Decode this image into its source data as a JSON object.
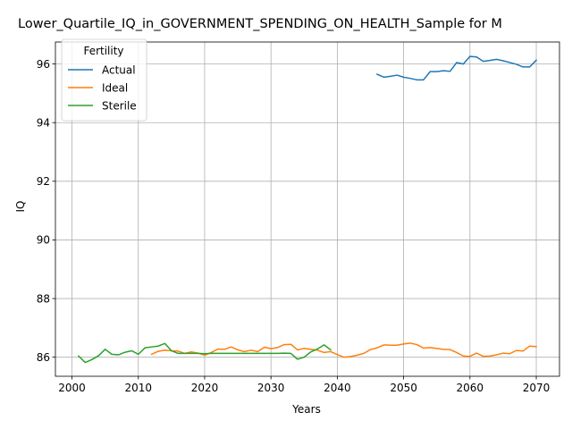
{
  "chart_data": {
    "type": "line",
    "title": "Lower_Quartile_IQ_in_GOVERNMENT_SPENDING_ON_HEALTH_Sample for M",
    "xlabel": "Years",
    "ylabel": "IQ",
    "xlim": [
      1997.5,
      2073.5
    ],
    "ylim": [
      85.35,
      96.75
    ],
    "xticks": [
      2000,
      2010,
      2020,
      2030,
      2040,
      2050,
      2060,
      2070
    ],
    "yticks": [
      86,
      88,
      90,
      92,
      94,
      96
    ],
    "grid": true,
    "legend": {
      "title": "Fertility",
      "position": "top-left"
    },
    "series": [
      {
        "name": "Actual",
        "color": "#1f77b4",
        "x": [
          2046,
          2047,
          2048,
          2049,
          2050,
          2051,
          2052,
          2053,
          2054,
          2055,
          2056,
          2057,
          2058,
          2059,
          2060,
          2061,
          2062,
          2063,
          2064,
          2065,
          2066,
          2067,
          2068,
          2069,
          2070
        ],
        "y": [
          95.65,
          95.55,
          95.58,
          95.62,
          95.55,
          95.51,
          95.46,
          95.46,
          95.74,
          95.74,
          95.77,
          95.75,
          96.05,
          96.0,
          96.26,
          96.24,
          96.09,
          96.12,
          96.16,
          96.11,
          96.05,
          95.99,
          95.9,
          95.9,
          96.13
        ]
      },
      {
        "name": "Ideal",
        "color": "#ff7f0e",
        "x": [
          2012,
          2013,
          2014,
          2015,
          2016,
          2017,
          2018,
          2019,
          2020,
          2021,
          2022,
          2023,
          2024,
          2025,
          2026,
          2027,
          2028,
          2029,
          2030,
          2031,
          2032,
          2033,
          2034,
          2035,
          2036,
          2037,
          2038,
          2039,
          2040,
          2041,
          2042,
          2043,
          2044,
          2045,
          2046,
          2047,
          2048,
          2049,
          2050,
          2051,
          2052,
          2053,
          2054,
          2055,
          2056,
          2057,
          2058,
          2059,
          2060,
          2061,
          2062,
          2063,
          2064,
          2065,
          2066,
          2067,
          2068,
          2069,
          2070
        ],
        "y": [
          86.1,
          86.2,
          86.24,
          86.22,
          86.21,
          86.13,
          86.18,
          86.14,
          86.07,
          86.16,
          86.28,
          86.27,
          86.35,
          86.25,
          86.19,
          86.24,
          86.19,
          86.34,
          86.29,
          86.33,
          86.43,
          86.44,
          86.25,
          86.3,
          86.27,
          86.24,
          86.16,
          86.19,
          86.09,
          86.0,
          86.02,
          86.07,
          86.13,
          86.26,
          86.32,
          86.42,
          86.41,
          86.41,
          86.45,
          86.48,
          86.43,
          86.31,
          86.33,
          86.3,
          86.27,
          86.26,
          86.16,
          86.04,
          86.03,
          86.14,
          86.03,
          86.04,
          86.08,
          86.14,
          86.12,
          86.23,
          86.21,
          86.38,
          86.36
        ]
      },
      {
        "name": "Sterile",
        "color": "#2ca02c",
        "x": [
          2001,
          2002,
          2003,
          2004,
          2005,
          2006,
          2007,
          2008,
          2009,
          2010,
          2011,
          2012,
          2013,
          2014,
          2015,
          2016,
          2017,
          2018,
          2019,
          2020,
          2021,
          2022,
          2023,
          2024,
          2025,
          2026,
          2027,
          2028,
          2029,
          2030,
          2031,
          2032,
          2033,
          2034,
          2035,
          2036,
          2037,
          2038,
          2039
        ],
        "y": [
          86.04,
          85.82,
          85.92,
          86.05,
          86.27,
          86.1,
          86.08,
          86.17,
          86.22,
          86.1,
          86.32,
          86.35,
          86.38,
          86.47,
          86.22,
          86.13,
          86.13,
          86.13,
          86.13,
          86.12,
          86.13,
          86.13,
          86.13,
          86.13,
          86.13,
          86.13,
          86.13,
          86.13,
          86.13,
          86.13,
          86.13,
          86.14,
          86.13,
          85.93,
          86.0,
          86.18,
          86.28,
          86.42,
          86.25
        ]
      }
    ]
  }
}
